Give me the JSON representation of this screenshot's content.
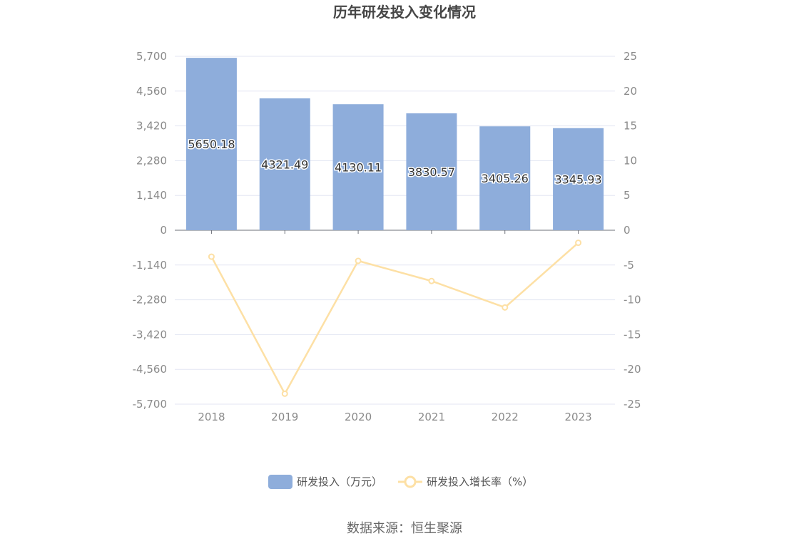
{
  "chart_data": {
    "type": "bar",
    "title": "历年研发投入变化情况",
    "categories": [
      "2018",
      "2019",
      "2020",
      "2021",
      "2022",
      "2023"
    ],
    "series": [
      {
        "name": "研发投入（万元）",
        "type": "bar",
        "axis": "left",
        "values": [
          5650.18,
          4321.49,
          4130.11,
          3830.57,
          3405.26,
          3345.93
        ],
        "value_labels": [
          "5650.18",
          "4321.49",
          "4130.11",
          "3830.57",
          "3405.26",
          "3345.93"
        ],
        "color": "#8eaddb"
      },
      {
        "name": "研发投入增长率（%）",
        "type": "line",
        "axis": "right",
        "values": [
          -3.8,
          -23.5,
          -4.4,
          -7.3,
          -11.1,
          -1.8
        ],
        "color": "#fde0a5"
      }
    ],
    "y_left": {
      "ticks": [
        5700,
        4560,
        3420,
        2280,
        1140,
        0,
        -1140,
        -2280,
        -3420,
        -4560,
        -5700
      ],
      "tick_labels": [
        "5,700",
        "4,560",
        "3,420",
        "2,280",
        "1,140",
        "0",
        "-1,140",
        "-2,280",
        "-3,420",
        "-4,560",
        "-5,700"
      ],
      "ylim": [
        -5700,
        5700
      ]
    },
    "y_right": {
      "ticks": [
        25,
        20,
        15,
        10,
        5,
        0,
        -5,
        -10,
        -15,
        -20,
        -25
      ],
      "tick_labels": [
        "25",
        "20",
        "15",
        "10",
        "5",
        "0",
        "-5",
        "-10",
        "-15",
        "-20",
        "-25"
      ],
      "ylim": [
        -25,
        25
      ]
    },
    "grid": true,
    "legend_position": "bottom-center"
  },
  "footer": {
    "source": "数据来源：恒生聚源"
  }
}
